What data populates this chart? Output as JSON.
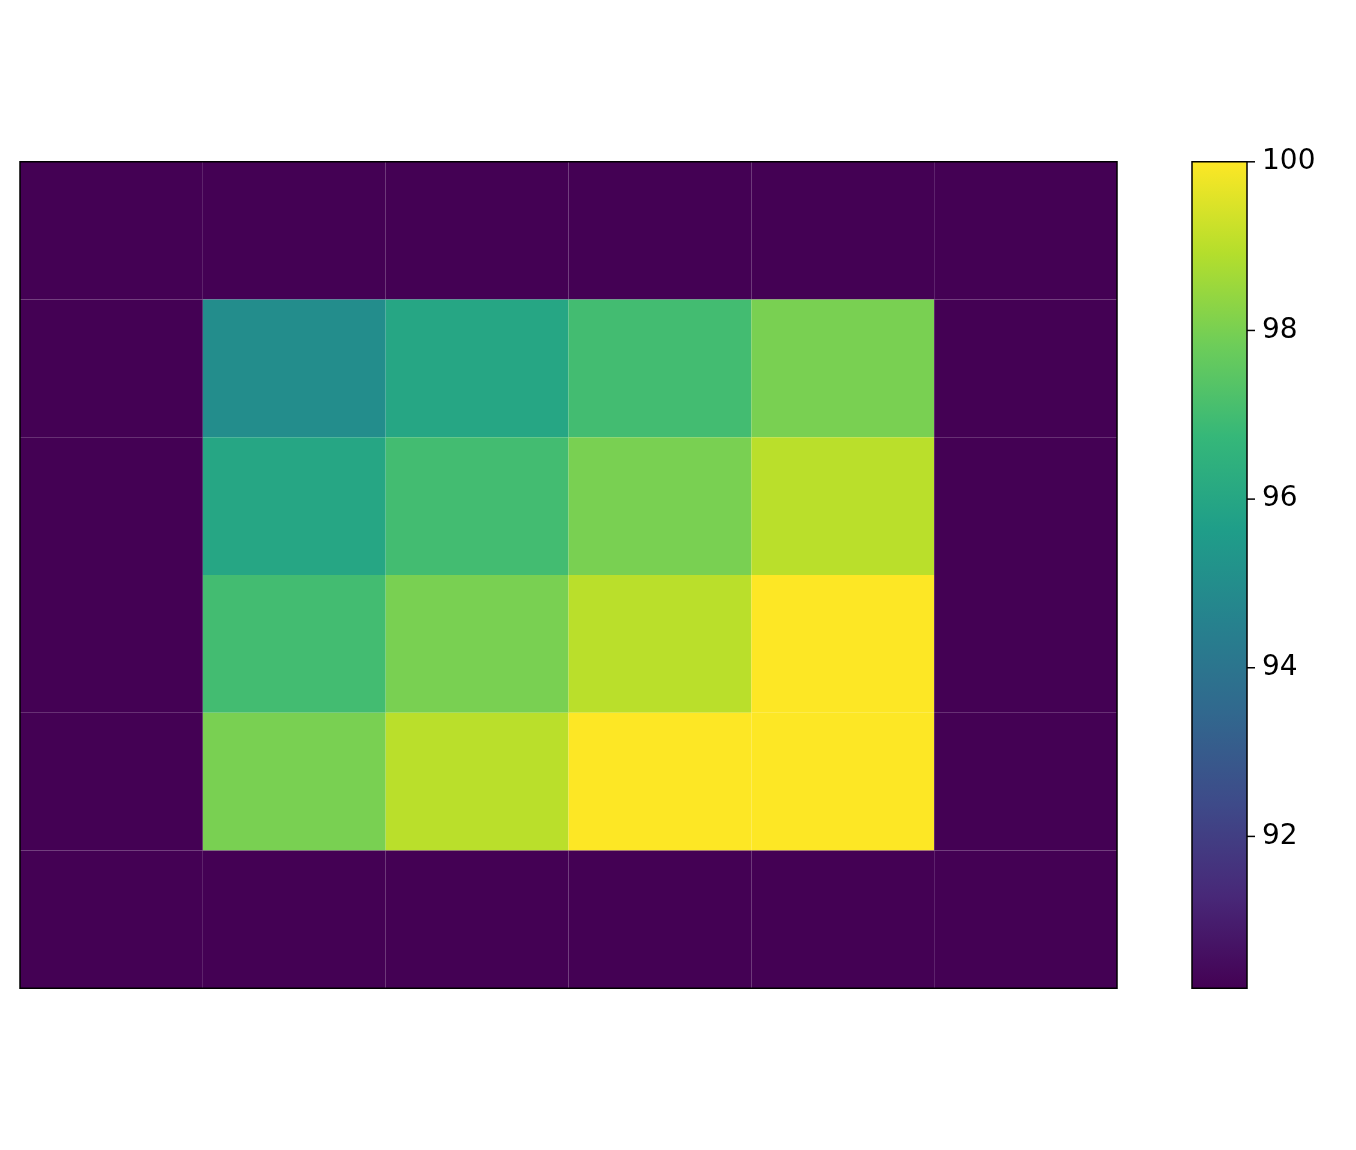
{
  "chart_data": {
    "type": "heatmap",
    "categories": [
      null,
      null,
      null,
      null,
      null,
      null
    ],
    "y_categories": [
      null,
      null,
      null,
      null,
      null,
      null
    ],
    "cells": [
      [
        90.2,
        90.2,
        90.2,
        90.2,
        90.2,
        90.2
      ],
      [
        90.2,
        95,
        96,
        97,
        98,
        90.2
      ],
      [
        90.2,
        96,
        97,
        98,
        99,
        90.2
      ],
      [
        90.2,
        97,
        98,
        99,
        100,
        90.2
      ],
      [
        90.2,
        98,
        99,
        100,
        100,
        90.2
      ],
      [
        90.2,
        90.2,
        90.2,
        90.2,
        90.2,
        90.2
      ]
    ],
    "clim": [
      90.2,
      100
    ],
    "cticks": [
      92,
      94,
      96,
      98,
      100
    ],
    "tick_labels": false
  }
}
